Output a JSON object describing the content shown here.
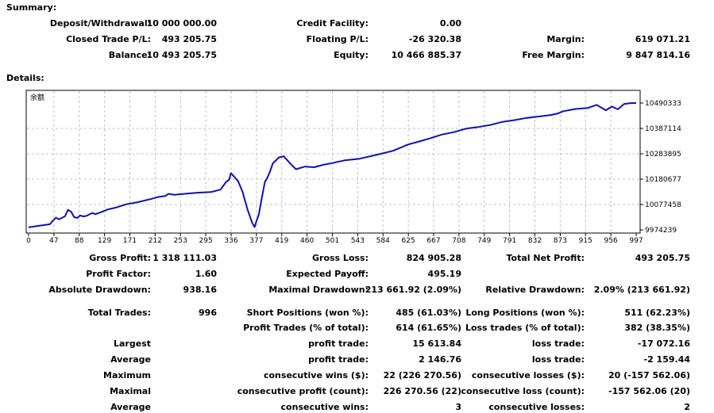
{
  "summary": {
    "heading": "Summary:",
    "rows": [
      [
        {
          "label": "Deposit/Withdrawal:",
          "value": "10 000 000.00"
        },
        {
          "label": "Credit Facility:",
          "value": "0.00"
        },
        {
          "label": "",
          "value": ""
        }
      ],
      [
        {
          "label": "Closed Trade P/L:",
          "value": "493 205.75"
        },
        {
          "label": "Floating P/L:",
          "value": "-26 320.38"
        },
        {
          "label": "Margin:",
          "value": "619 071.21"
        }
      ],
      [
        {
          "label": "Balance:",
          "value": "10 493 205.75"
        },
        {
          "label": "Equity:",
          "value": "10 466 885.37"
        },
        {
          "label": "Free Margin:",
          "value": "9 847 814.16"
        }
      ]
    ]
  },
  "details": {
    "heading": "Details:"
  },
  "chart_data": {
    "type": "line",
    "title": "余额",
    "x_ticks": [
      "0",
      "47",
      "88",
      "129",
      "171",
      "212",
      "253",
      "295",
      "336",
      "377",
      "419",
      "460",
      "501",
      "543",
      "584",
      "625",
      "667",
      "708",
      "749",
      "791",
      "832",
      "873",
      "915",
      "956",
      "997"
    ],
    "y_ticks": [
      "10490333",
      "10387114",
      "10283895",
      "10180677",
      "10077458",
      "9974239"
    ],
    "xlim": [
      0,
      1000
    ],
    "ylim": [
      9974239,
      10490333
    ],
    "grid": true,
    "line_color": "#1010b0",
    "series": [
      {
        "x": [
          0,
          20,
          35,
          40,
          45,
          50,
          60,
          65,
          70,
          75,
          80,
          85,
          90,
          95,
          100,
          105,
          110,
          120,
          130,
          145,
          160,
          180,
          200,
          215,
          225,
          230,
          240,
          260,
          280,
          300,
          316,
          325,
          330,
          333,
          338,
          345,
          352,
          360,
          368,
          372,
          375,
          379,
          383,
          389,
          392,
          397,
          402,
          412,
          420,
          430,
          440,
          455,
          470,
          485,
          500,
          520,
          545,
          575,
          600,
          625,
          640,
          660,
          680,
          700,
          720,
          740,
          760,
          780,
          800,
          820,
          845,
          860,
          870,
          880,
          900,
          920,
          935,
          950,
          960,
          970,
          980,
          990,
          1000
        ],
        "y": [
          9985000,
          9992000,
          9997000,
          10012000,
          10024000,
          10017000,
          10030000,
          10056000,
          10048000,
          10026000,
          10023000,
          10033000,
          10029000,
          10031000,
          10037000,
          10043000,
          10038000,
          10047000,
          10057000,
          10066000,
          10078000,
          10087000,
          10099000,
          10109000,
          10112000,
          10121000,
          10117000,
          10122000,
          10126000,
          10128000,
          10138000,
          10169000,
          10178000,
          10205000,
          10192000,
          10172000,
          10130000,
          10060000,
          10003000,
          9986000,
          10010000,
          10037000,
          10093000,
          10171000,
          10181000,
          10209000,
          10245000,
          10269000,
          10274000,
          10246000,
          10221000,
          10232000,
          10229000,
          10239000,
          10246000,
          10257000,
          10264000,
          10281000,
          10296000,
          10322000,
          10332000,
          10346000,
          10362000,
          10372000,
          10386000,
          10393000,
          10401000,
          10414000,
          10421000,
          10430000,
          10437000,
          10442000,
          10447000,
          10457000,
          10466000,
          10470000,
          10483000,
          10461000,
          10476000,
          10465000,
          10486000,
          10490000,
          10490333
        ]
      }
    ]
  },
  "stats": {
    "row1": [
      {
        "label": "Gross Profit:",
        "value": "1 318 111.03"
      },
      {
        "label": "Gross Loss:",
        "value": "824 905.28"
      },
      {
        "label": "Total Net Profit:",
        "value": "493 205.75"
      }
    ],
    "row2": [
      {
        "label": "Profit Factor:",
        "value": "1.60"
      },
      {
        "label": "Expected Payoff:",
        "value": "495.19"
      },
      {
        "label": "",
        "value": ""
      }
    ],
    "row3": [
      {
        "label": "Absolute Drawdown:",
        "value": "938.16"
      },
      {
        "label": "Maximal Drawdown:",
        "value": "213 661.92 (2.09%)"
      },
      {
        "label": "Relative Drawdown:",
        "value": "2.09% (213 661.92)"
      }
    ],
    "row4": [
      {
        "label": "Total Trades:",
        "value": "996"
      },
      {
        "label": "Short Positions (won %):",
        "value": "485 (61.03%)"
      },
      {
        "label": "Long Positions (won %):",
        "value": "511 (62.23%)"
      }
    ],
    "row5": [
      {
        "label": "",
        "value": ""
      },
      {
        "label": "Profit Trades (% of total):",
        "value": "614 (61.65%)"
      },
      {
        "label": "Loss trades (% of total):",
        "value": "382 (38.35%)"
      }
    ],
    "row6": [
      {
        "label": "Largest",
        "value": ""
      },
      {
        "label": "profit trade:",
        "value": "15 613.84"
      },
      {
        "label": "loss trade:",
        "value": "-17 072.16"
      }
    ],
    "row7": [
      {
        "label": "Average",
        "value": ""
      },
      {
        "label": "profit trade:",
        "value": "2 146.76"
      },
      {
        "label": "loss trade:",
        "value": "-2 159.44"
      }
    ],
    "row8": [
      {
        "label": "Maximum",
        "value": ""
      },
      {
        "label": "consecutive wins ($):",
        "value": "22 (226 270.56)"
      },
      {
        "label": "consecutive losses ($):",
        "value": "20 (-157 562.06)"
      }
    ],
    "row9": [
      {
        "label": "Maximal",
        "value": ""
      },
      {
        "label": "consecutive profit (count):",
        "value": "226 270.56 (22)"
      },
      {
        "label": "consecutive loss (count):",
        "value": "-157 562.06 (20)"
      }
    ],
    "row10": [
      {
        "label": "Average",
        "value": ""
      },
      {
        "label": "consecutive wins:",
        "value": "3"
      },
      {
        "label": "consecutive losses:",
        "value": "2"
      }
    ]
  }
}
